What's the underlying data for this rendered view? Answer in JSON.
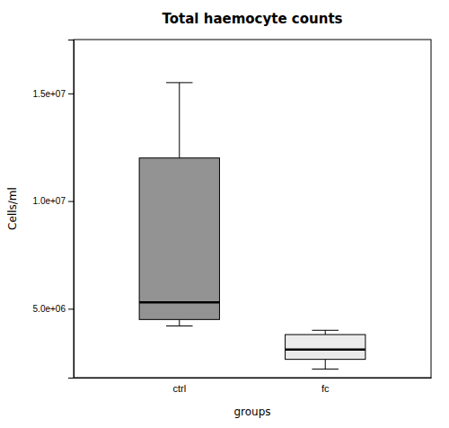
{
  "chart_data": {
    "type": "box",
    "title": "Total haemocyte counts",
    "xlabel": "groups",
    "ylabel": "Cells/ml",
    "categories": [
      "ctrl",
      "fc"
    ],
    "whisker_low": [
      4200000,
      2200000
    ],
    "q1": [
      4500000,
      2650000
    ],
    "median": [
      5300000,
      3100000
    ],
    "q3": [
      12000000,
      3800000
    ],
    "whisker_high": [
      15500000,
      4000000
    ],
    "colors": [
      "#939393",
      "#ebebeb"
    ],
    "ylim": [
      1800000,
      17500000
    ],
    "yticks": [
      {
        "value": 5000000,
        "label": "5.0e+06"
      },
      {
        "value": 10000000,
        "label": "1.0e+07"
      },
      {
        "value": 15000000,
        "label": "1.5e+07"
      }
    ],
    "grid": false
  }
}
